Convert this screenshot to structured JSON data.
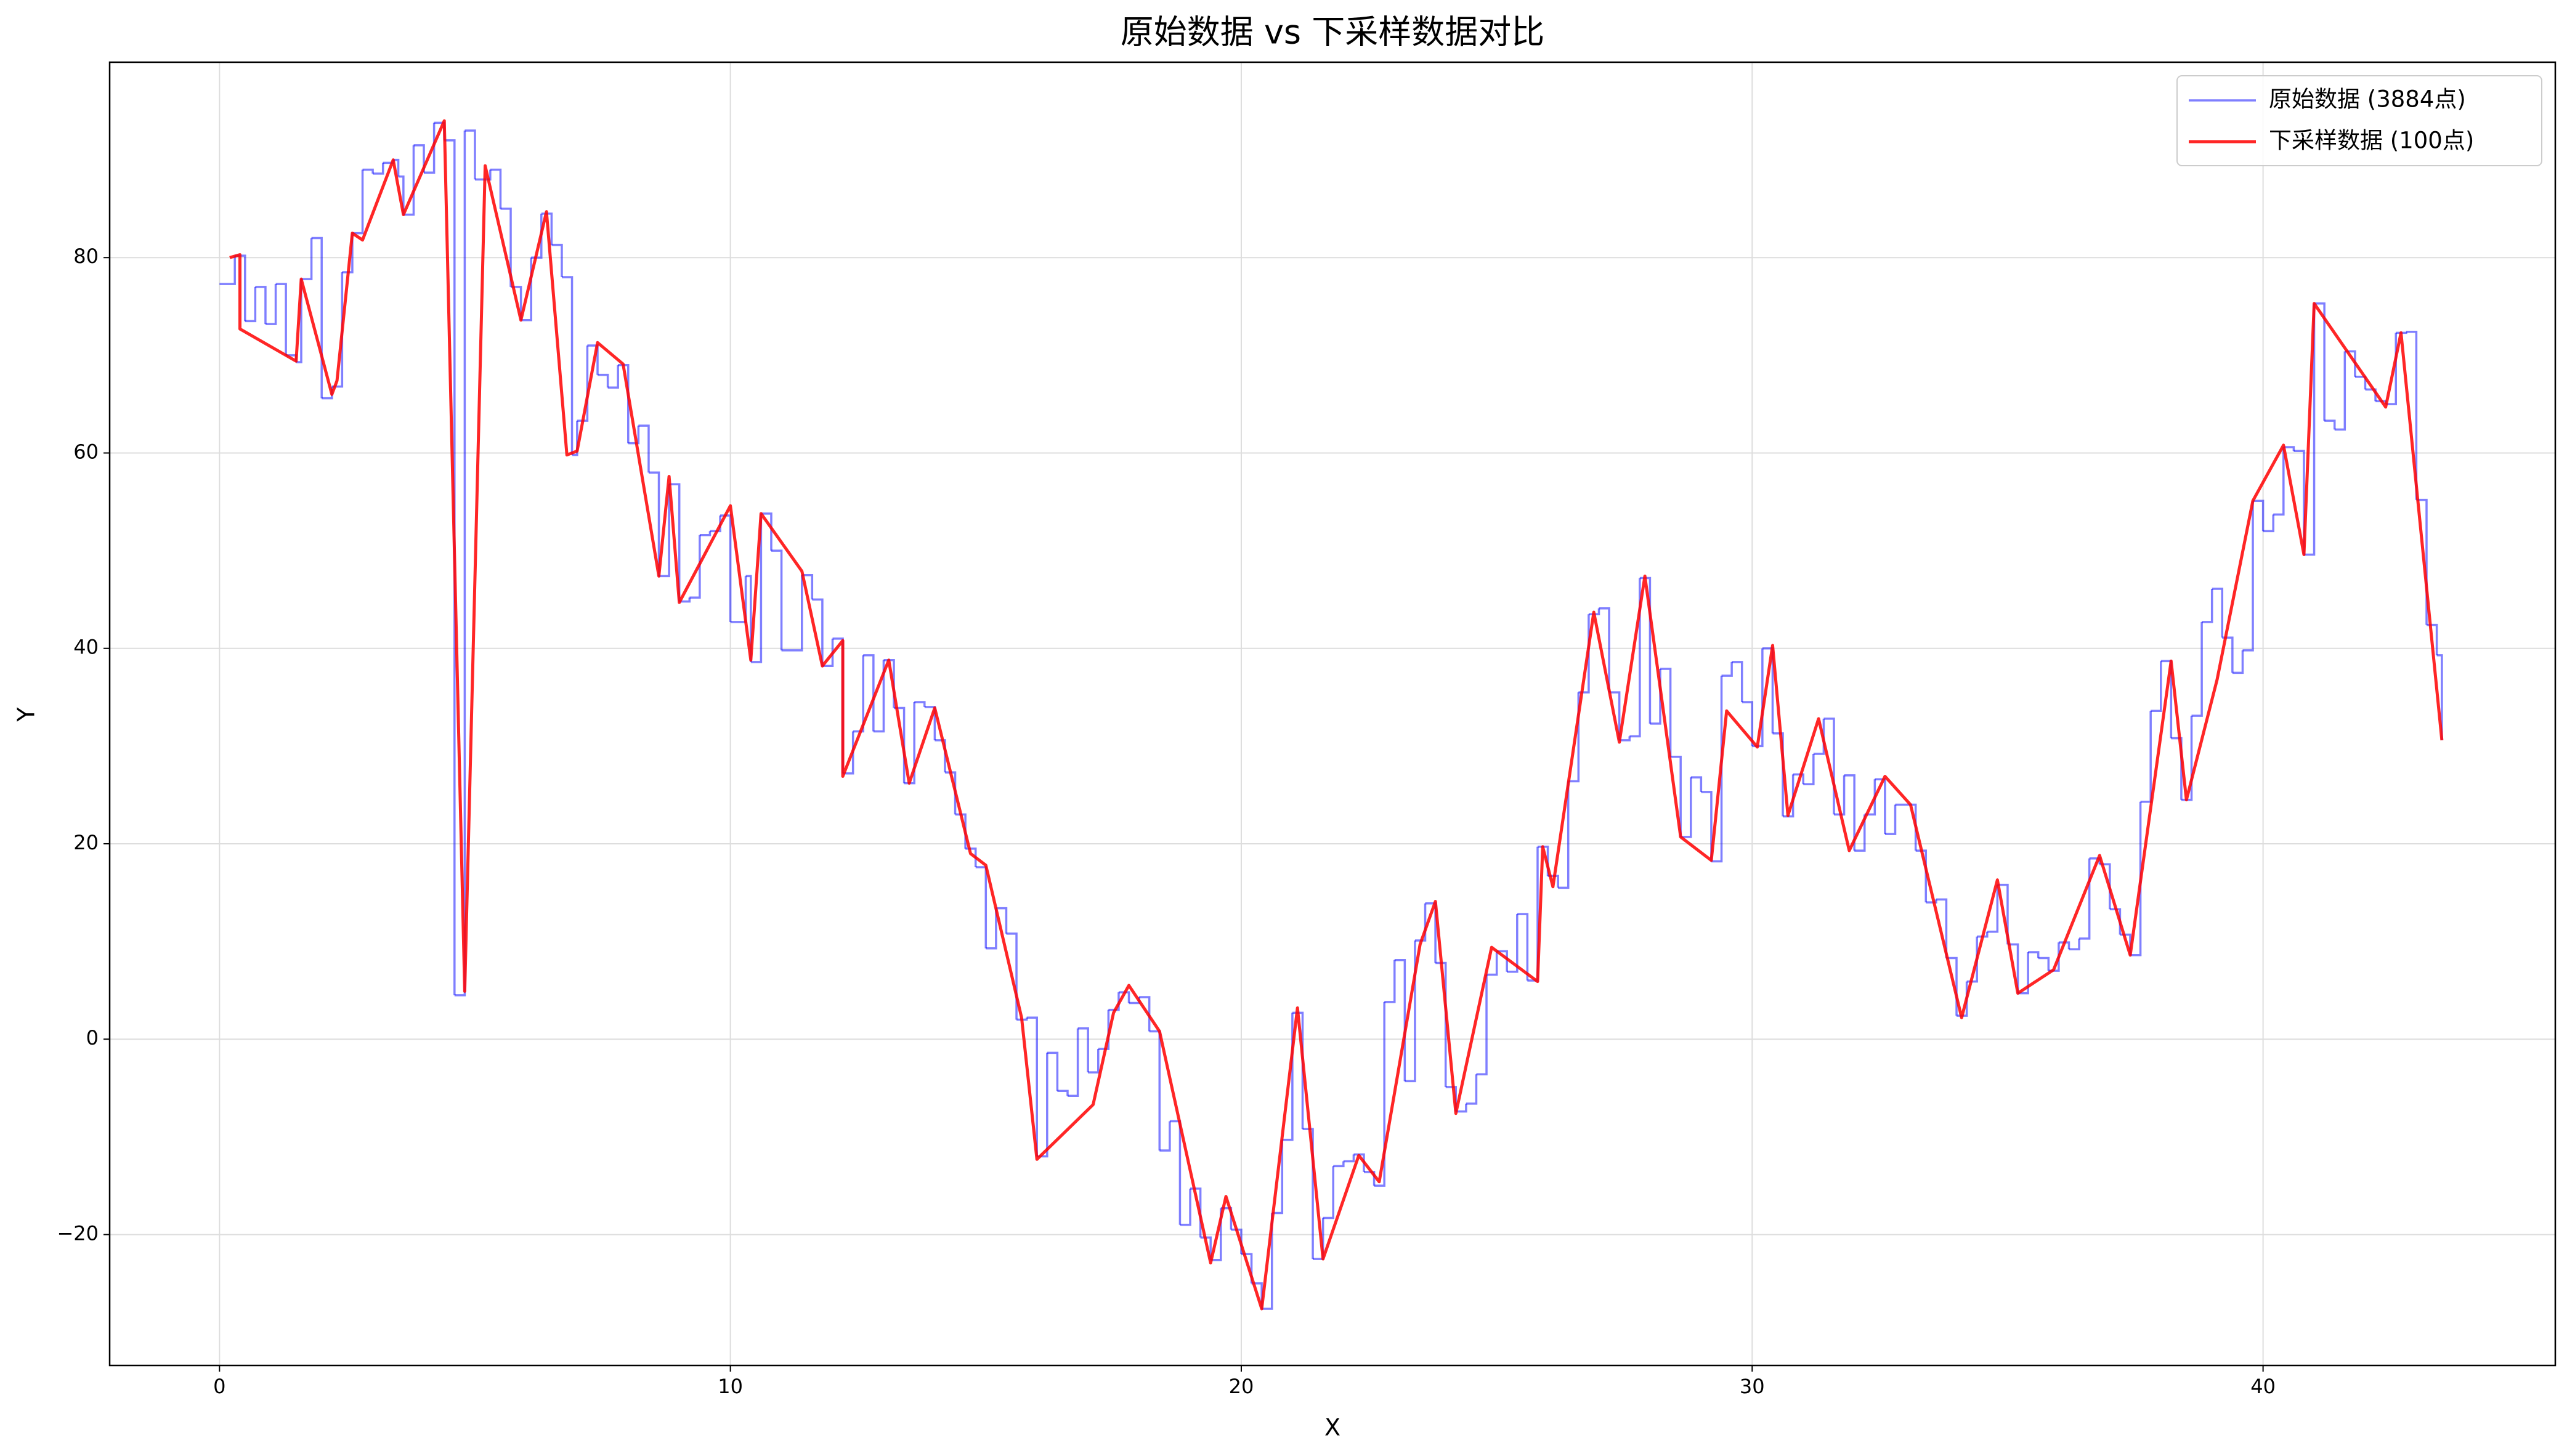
{
  "chart_data": {
    "type": "line",
    "title": "原始数据 vs 下采样数据对比",
    "xlabel": "X",
    "ylabel": "Y",
    "xlim": [
      -2.15,
      45.72
    ],
    "ylim": [
      -33.4,
      100
    ],
    "xticks": [
      0,
      10,
      20,
      30,
      40
    ],
    "yticks": [
      {
        "value": -20,
        "label": "−20"
      },
      0,
      20,
      40,
      60,
      80
    ],
    "grid": true,
    "legend": "upper right",
    "series": [
      {
        "name": "原始数据 (3884点)",
        "color": "#0000ff",
        "alpha": 0.5,
        "drawstyle": "steps-post",
        "x": [
          0,
          0.3,
          0.5,
          0.7,
          0.9,
          1.1,
          1.3,
          1.5,
          1.6,
          1.8,
          2.0,
          2.2,
          2.4,
          2.6,
          2.8,
          3.0,
          3.2,
          3.4,
          3.5,
          3.6,
          3.8,
          4.0,
          4.2,
          4.4,
          4.6,
          4.8,
          5.0,
          5.3,
          5.5,
          5.7,
          5.9,
          6.1,
          6.3,
          6.5,
          6.7,
          6.9,
          7.0,
          7.2,
          7.4,
          7.6,
          7.8,
          8.0,
          8.2,
          8.4,
          8.6,
          8.8,
          9.0,
          9.2,
          9.4,
          9.6,
          9.8,
          10.0,
          10.3,
          10.4,
          10.6,
          10.8,
          11.0,
          11.4,
          11.6,
          11.8,
          12.0,
          12.2,
          12.4,
          12.6,
          12.8,
          13.0,
          13.2,
          13.4,
          13.6,
          13.8,
          14.0,
          14.2,
          14.4,
          14.6,
          14.8,
          15.0,
          15.2,
          15.4,
          15.6,
          15.8,
          16.0,
          16.2,
          16.4,
          16.6,
          16.8,
          17.0,
          17.2,
          17.4,
          17.6,
          17.8,
          18.0,
          18.2,
          18.4,
          18.6,
          18.8,
          19.0,
          19.2,
          19.4,
          19.6,
          19.8,
          20.0,
          20.2,
          20.4,
          20.6,
          20.8,
          21.0,
          21.2,
          21.4,
          21.6,
          21.8,
          22.0,
          22.2,
          22.4,
          22.6,
          22.8,
          23.0,
          23.2,
          23.4,
          23.6,
          23.8,
          24.0,
          24.2,
          24.4,
          24.6,
          24.8,
          25.0,
          25.2,
          25.4,
          25.6,
          25.8,
          26.0,
          26.2,
          26.4,
          26.6,
          26.8,
          27.0,
          27.2,
          27.4,
          27.6,
          27.8,
          28.0,
          28.2,
          28.4,
          28.6,
          28.8,
          29.0,
          29.2,
          29.4,
          29.6,
          29.8,
          30.0,
          30.2,
          30.4,
          30.6,
          30.8,
          31.0,
          31.2,
          31.4,
          31.6,
          31.8,
          32.0,
          32.2,
          32.4,
          32.6,
          32.8,
          33.0,
          33.2,
          33.4,
          33.6,
          33.8,
          34.0,
          34.2,
          34.4,
          34.6,
          34.8,
          35.0,
          35.2,
          35.4,
          35.6,
          35.8,
          36.0,
          36.2,
          36.4,
          36.6,
          36.8,
          37.0,
          37.2,
          37.4,
          37.6,
          37.8,
          38.0,
          38.2,
          38.4,
          38.6,
          38.8,
          39.0,
          39.2,
          39.4,
          39.6,
          39.8,
          40.0,
          40.2,
          40.4,
          40.6,
          40.8,
          41.0,
          41.2,
          41.4,
          41.6,
          41.8,
          42.0,
          42.2,
          42.4,
          42.6,
          42.8,
          43.0,
          43.2,
          43.4,
          43.5
        ],
        "values": [
          77.3,
          80.2,
          73.5,
          77,
          73.2,
          77.3,
          70,
          69.3,
          77.8,
          82,
          65.6,
          66.8,
          78.5,
          82.5,
          89,
          88.6,
          89.7,
          90,
          88.3,
          84.4,
          91.5,
          88.7,
          93.8,
          92,
          4.5,
          93,
          88,
          89,
          85,
          77,
          73.6,
          80,
          84.5,
          81.3,
          78,
          59.8,
          63.3,
          71,
          68.0,
          66.7,
          69,
          61,
          62.8,
          58,
          47.4,
          56.8,
          44.8,
          45.2,
          51.6,
          52,
          53.6,
          42.7,
          47.4,
          38.6,
          53.8,
          50,
          39.8,
          47.5,
          45,
          38.2,
          41,
          27.2,
          31.5,
          39.3,
          31.5,
          38.8,
          33.9,
          26.2,
          34.5,
          34,
          30.6,
          27.3,
          23,
          19.5,
          17.6,
          9.3,
          13.4,
          10.8,
          2,
          2.2,
          -12,
          -1.4,
          -5.3,
          -5.8,
          1.1,
          -3.4,
          -1,
          3,
          4.8,
          3.7,
          4.3,
          0.8,
          -11.4,
          -8.4,
          -19,
          -15.3,
          -20.3,
          -22.6,
          -17.3,
          -19.5,
          -22,
          -25,
          -27.6,
          -17.8,
          -10.3,
          2.7,
          -9.2,
          -22.5,
          -18.3,
          -13,
          -12.5,
          -11.8,
          -13.6,
          -15,
          3.8,
          8.1,
          -4.3,
          10.1,
          13.9,
          7.8,
          -4.9,
          -7.4,
          -6.6,
          -3.6,
          6.6,
          9,
          6.9,
          12.8,
          6,
          19.7,
          16.7,
          15.5,
          26.4,
          35.5,
          43.5,
          44.1,
          35.5,
          30.6,
          31,
          47.2,
          32.3,
          37.9,
          28.9,
          20.7,
          26.8,
          25.3,
          18.2,
          37.2,
          38.6,
          34.5,
          30,
          40,
          31.3,
          22.8,
          27.1,
          26.1,
          29.2,
          32.8,
          23,
          27,
          19.3,
          23,
          26.6,
          21,
          24,
          24,
          19.3,
          14,
          14.3,
          8.3,
          2.4,
          5.9,
          10.5,
          11,
          15.8,
          9.7,
          4.7,
          8.9,
          8.3,
          7,
          9.9,
          9.2,
          10.3,
          18.5,
          17.9,
          13.3,
          10.7,
          8.6,
          24.3,
          33.6,
          38.7,
          30.8,
          24.5,
          33.1,
          42.7,
          46.1,
          41.1,
          37.5,
          39.8,
          55.1,
          52,
          53.7,
          60.6,
          60.2,
          49.6,
          75.3,
          63.3,
          62.4,
          70.4,
          67.8,
          66.5,
          65.3,
          65,
          72.3,
          72.4,
          55.2,
          42.4,
          39.3,
          30.6
        ]
      },
      {
        "name": "下采样数据 (100点)",
        "color": "#ff0000",
        "alpha": 0.85,
        "drawstyle": "default",
        "x": [
          0.2,
          0.4,
          0.4,
          1.5,
          1.6,
          2.2,
          2.3,
          2.6,
          2.8,
          3.4,
          3.6,
          4.4,
          4.8,
          5.2,
          5.9,
          6.4,
          6.8,
          7.0,
          7.4,
          7.9,
          8.6,
          8.8,
          9.0,
          10.0,
          10.4,
          10.6,
          11.4,
          11.8,
          12.2,
          12.2,
          13.1,
          13.5,
          14.0,
          14.7,
          15.0,
          15.7,
          16.0,
          17.1,
          17.5,
          17.8,
          18.4,
          19.4,
          19.7,
          20.4,
          21.1,
          21.6,
          22.3,
          22.7,
          23.5,
          23.8,
          24.2,
          24.9,
          25.8,
          25.9,
          26.1,
          26.9,
          27.4,
          27.9,
          28.6,
          29.2,
          29.5,
          30.1,
          30.4,
          30.7,
          31.3,
          31.9,
          32.6,
          33.1,
          34.1,
          34.8,
          35.2,
          35.9,
          36.8,
          37.4,
          38.2,
          38.5,
          39.1,
          39.8,
          40.4,
          40.8,
          41.0,
          42.4,
          42.7,
          43.5
        ],
        "values": [
          80,
          80.3,
          72.7,
          69.4,
          77.8,
          66,
          67.4,
          82.5,
          81.8,
          90,
          84.4,
          94,
          4.9,
          89.4,
          73.6,
          84.7,
          59.8,
          60.2,
          71.3,
          69.1,
          47.4,
          57.6,
          44.7,
          54.6,
          38.8,
          53.8,
          47.9,
          38.2,
          40.8,
          26.9,
          38.8,
          26.2,
          33.9,
          19,
          17.8,
          2.2,
          -12.3,
          -6.7,
          2.7,
          5.5,
          0.8,
          -22.9,
          -16.1,
          -27.6,
          3.2,
          -22.5,
          -11.9,
          -14.6,
          9.7,
          14.1,
          -7.6,
          9.4,
          5.9,
          19.7,
          15.6,
          43.7,
          30.4,
          47.4,
          20.7,
          18.3,
          33.6,
          29.9,
          40.3,
          22.9,
          32.8,
          19.3,
          26.9,
          24.0,
          2.2,
          16.3,
          4.7,
          7.1,
          18.8,
          8.6,
          38.7,
          24.5,
          36.8,
          55.1,
          60.8,
          49.6,
          75.3,
          64.7,
          72.3,
          30.6
        ]
      }
    ]
  }
}
